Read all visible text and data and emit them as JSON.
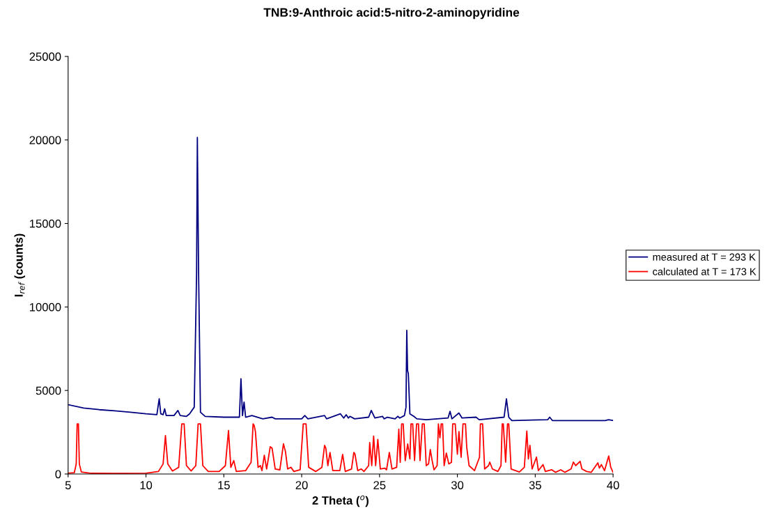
{
  "chart_data": {
    "type": "line",
    "title": "TNB:9-Anthroic acid:5-nitro-2-aminopyridine",
    "xlabel": "2 Theta ($^{o}$)",
    "ylabel": "I$_{ref}$ (counts)",
    "xlim": [
      5,
      40
    ],
    "xticks": [
      5,
      10,
      15,
      20,
      25,
      30,
      35,
      40
    ],
    "ylim": [
      0,
      25000
    ],
    "yticks": [
      0,
      5000,
      10000,
      15000,
      20000,
      25000
    ],
    "grid": false,
    "legend": "right",
    "marker": "none",
    "line_style": "solid",
    "series": [
      {
        "name": "measured at T = 293 K",
        "color": "#000080",
        "x": [
          5.0,
          6,
          7,
          8,
          9,
          10,
          10.7,
          10.85,
          10.95,
          11.1,
          11.2,
          11.3,
          11.8,
          12.05,
          12.2,
          12.6,
          12.8,
          13.1,
          13.25,
          13.3,
          13.38,
          13.5,
          13.8,
          15,
          16.0,
          16.1,
          16.2,
          16.3,
          16.4,
          16.8,
          17.5,
          18.1,
          18.3,
          20,
          20.2,
          20.4,
          21.47,
          21.6,
          22.49,
          22.7,
          22.86,
          23.0,
          23.1,
          23.4,
          24.3,
          24.47,
          24.7,
          25.19,
          25.3,
          25.5,
          26.0,
          26.17,
          26.3,
          26.6,
          26.7,
          26.75,
          26.8,
          26.85,
          26.95,
          27.2,
          27.4,
          28,
          29.4,
          29.53,
          29.65,
          30.1,
          30.3,
          31.2,
          31.4,
          33.0,
          33.15,
          33.3,
          33.5,
          35.8,
          35.93,
          36.1,
          38,
          39.5,
          39.7,
          40
        ],
        "values": [
          4150,
          3950,
          3850,
          3780,
          3700,
          3600,
          3550,
          4500,
          3600,
          3550,
          3900,
          3500,
          3500,
          3800,
          3500,
          3450,
          3600,
          4000,
          12000,
          20150,
          12000,
          3700,
          3450,
          3400,
          3400,
          5700,
          3500,
          4300,
          3400,
          3500,
          3300,
          3400,
          3300,
          3300,
          3500,
          3300,
          3500,
          3300,
          3600,
          3350,
          3550,
          3350,
          3450,
          3300,
          3400,
          3800,
          3350,
          3450,
          3300,
          3400,
          3300,
          3450,
          3350,
          3500,
          4000,
          8600,
          6200,
          6000,
          3600,
          3450,
          3300,
          3250,
          3350,
          3750,
          3300,
          3650,
          3350,
          3400,
          3250,
          3400,
          4500,
          3400,
          3200,
          3250,
          3400,
          3200,
          3200,
          3200,
          3250,
          3200
        ]
      },
      {
        "name": "calculated at T = 173 K",
        "color": "#ff0000",
        "x": [
          5,
          5.4,
          5.52,
          5.58,
          5.66,
          5.72,
          5.85,
          6.5,
          8,
          10,
          10.8,
          11.1,
          11.25,
          11.4,
          11.7,
          12.1,
          12.3,
          12.45,
          12.6,
          12.9,
          13.2,
          13.35,
          13.5,
          13.65,
          14,
          14.7,
          15.1,
          15.3,
          15.45,
          15.64,
          15.8,
          16.4,
          16.75,
          16.88,
          16.95,
          17.03,
          17.2,
          17.35,
          17.45,
          17.6,
          17.75,
          17.98,
          18.1,
          18.3,
          18.6,
          18.83,
          18.96,
          19.1,
          19.31,
          19.5,
          19.9,
          20.1,
          20.28,
          20.45,
          20.9,
          21.3,
          21.47,
          21.55,
          21.68,
          21.82,
          22.0,
          22.45,
          22.63,
          22.8,
          23.2,
          23.35,
          23.42,
          23.6,
          23.83,
          24.0,
          24.3,
          24.37,
          24.5,
          24.62,
          24.75,
          24.89,
          25.05,
          25.34,
          25.45,
          25.63,
          25.8,
          26.1,
          26.24,
          26.33,
          26.42,
          26.52,
          26.65,
          26.81,
          26.95,
          27.02,
          27.13,
          27.25,
          27.38,
          27.5,
          27.6,
          27.75,
          27.87,
          28.0,
          28.15,
          28.26,
          28.38,
          28.5,
          28.7,
          28.78,
          28.88,
          28.96,
          29.05,
          29.15,
          29.29,
          29.45,
          29.62,
          29.7,
          29.86,
          30.0,
          30.1,
          30.24,
          30.36,
          30.52,
          30.6,
          30.75,
          31.1,
          31.42,
          31.48,
          31.62,
          31.75,
          32.0,
          32.08,
          32.25,
          32.6,
          32.8,
          32.88,
          32.95,
          33.1,
          33.22,
          33.3,
          33.45,
          33.98,
          34.3,
          34.46,
          34.56,
          34.66,
          34.8,
          35.08,
          35.2,
          35.5,
          35.65,
          36.06,
          36.3,
          36.64,
          36.9,
          37.3,
          37.45,
          37.6,
          37.88,
          38.0,
          38.3,
          38.6,
          39.02,
          39.12,
          39.25,
          39.45,
          39.72,
          39.85,
          40
        ],
        "values": [
          50,
          80,
          600,
          3000,
          3000,
          600,
          120,
          40,
          30,
          50,
          150,
          600,
          2300,
          600,
          180,
          400,
          3000,
          3000,
          500,
          180,
          500,
          3000,
          3000,
          500,
          150,
          150,
          500,
          2600,
          400,
          800,
          150,
          200,
          700,
          3000,
          2900,
          2540,
          400,
          500,
          200,
          1120,
          300,
          1630,
          1540,
          300,
          250,
          1810,
          1330,
          300,
          400,
          150,
          250,
          3000,
          3000,
          400,
          150,
          400,
          1710,
          1550,
          500,
          1290,
          200,
          200,
          1170,
          150,
          300,
          1290,
          1200,
          200,
          300,
          150,
          500,
          1880,
          500,
          2270,
          500,
          2070,
          300,
          350,
          250,
          1290,
          300,
          400,
          2680,
          700,
          3000,
          3000,
          800,
          1800,
          900,
          3000,
          3000,
          800,
          3000,
          3000,
          800,
          3000,
          3000,
          500,
          600,
          1460,
          800,
          250,
          500,
          3000,
          2170,
          3000,
          3000,
          500,
          1250,
          600,
          700,
          3000,
          3000,
          1180,
          2540,
          1000,
          3000,
          3000,
          1600,
          500,
          200,
          1000,
          3000,
          3000,
          300,
          500,
          710,
          300,
          150,
          500,
          3000,
          3000,
          710,
          3000,
          3000,
          300,
          120,
          400,
          2570,
          900,
          1710,
          300,
          1010,
          200,
          560,
          150,
          250,
          100,
          250,
          100,
          300,
          710,
          500,
          760,
          300,
          150,
          100,
          670,
          350,
          560,
          200,
          1080,
          400,
          100
        ]
      }
    ]
  }
}
